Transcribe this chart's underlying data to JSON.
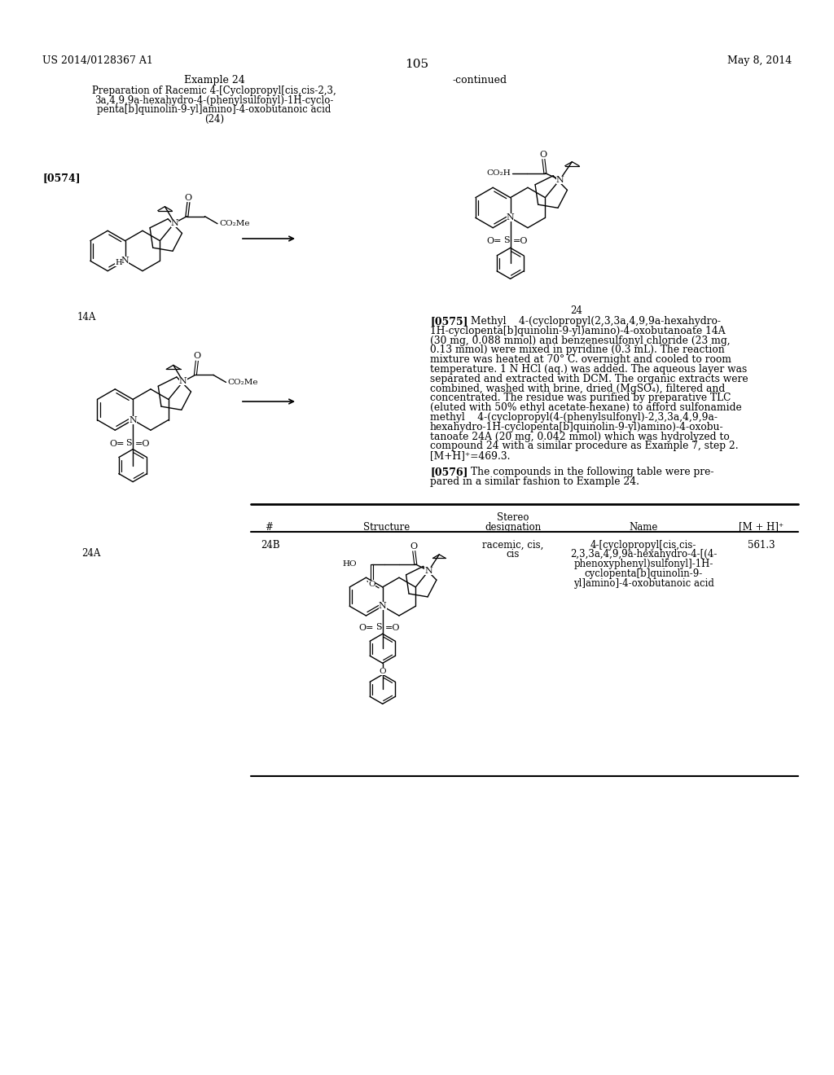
{
  "bg": "#ffffff",
  "header_left": "US 2014/0128367 A1",
  "header_right": "May 8, 2014",
  "page_num": "105",
  "continued": "-continued",
  "example_title": "Example 24",
  "subtitle_lines": [
    "Preparation of Racemic 4-[Cyclopropyl[cis,cis-2,3,",
    "3a,4,9,9a-hexahydro-4-(phenylsulfonyl)-1H-cyclo-",
    "penta[b]quinolin-9-yl]amino]-4-oxobutanoic acid",
    "(24)"
  ],
  "para0574_tag": "[0574]",
  "label_14A": "14A",
  "label_24A": "24A",
  "label_24": "24",
  "para0575_tag": "[0575]",
  "para0575_lines": [
    "Methyl    4-(cyclopropyl(2,3,3a,4,9,9a-hexahydro-",
    "1H-cyclopenta[b]quinolin-9-yl)amino)-4-oxobutanoate 14A",
    "(30 mg, 0.088 mmol) and benzenesulfonyl chloride (23 mg,",
    "0.13 mmol) were mixed in pyridine (0.3 mL). The reaction",
    "mixture was heated at 70° C. overnight and cooled to room",
    "temperature. 1 N HCl (aq.) was added. The aqueous layer was",
    "separated and extracted with DCM. The organic extracts were",
    "combined, washed with brine, dried (MgSO₄), filtered and",
    "concentrated. The residue was purified by preparative TLC",
    "(eluted with 50% ethyl acetate-hexane) to afford sulfonamide",
    "methyl    4-(cyclopropyl(4-(phenylsulfonyl)-2,3,3a,4,9,9a-",
    "hexahydro-1H-cyclopenta[b]quinolin-9-yl)amino)-4-oxobu-",
    "tanoate 24A (20 mg, 0.042 mmol) which was hydrolyzed to",
    "compound 24 with a similar procedure as Example 7, step 2.",
    "[M+H]⁺=469.3."
  ],
  "para0576_tag": "[0576]",
  "para0576_lines": [
    "The compounds in the following table were pre-",
    "pared in a similar fashion to Example 24."
  ],
  "table_headers": [
    "#",
    "Structure",
    "Stereo",
    "designation",
    "Name",
    "[M + H]⁺"
  ],
  "row_number": "24B",
  "row_stereo1": "racemic, cis,",
  "row_stereo2": "cis",
  "row_name_lines": [
    "4-[cyclopropyl[cis,cis-",
    "2,3,3a,4,9,9a-hexahydro-4-[(4-",
    "phenoxyphenyl)sulfonyl]-1H-",
    "cyclopenta[b]quinolin-9-",
    "yl]amino]-4-oxobutanoic acid"
  ],
  "row_mh": "561.3"
}
